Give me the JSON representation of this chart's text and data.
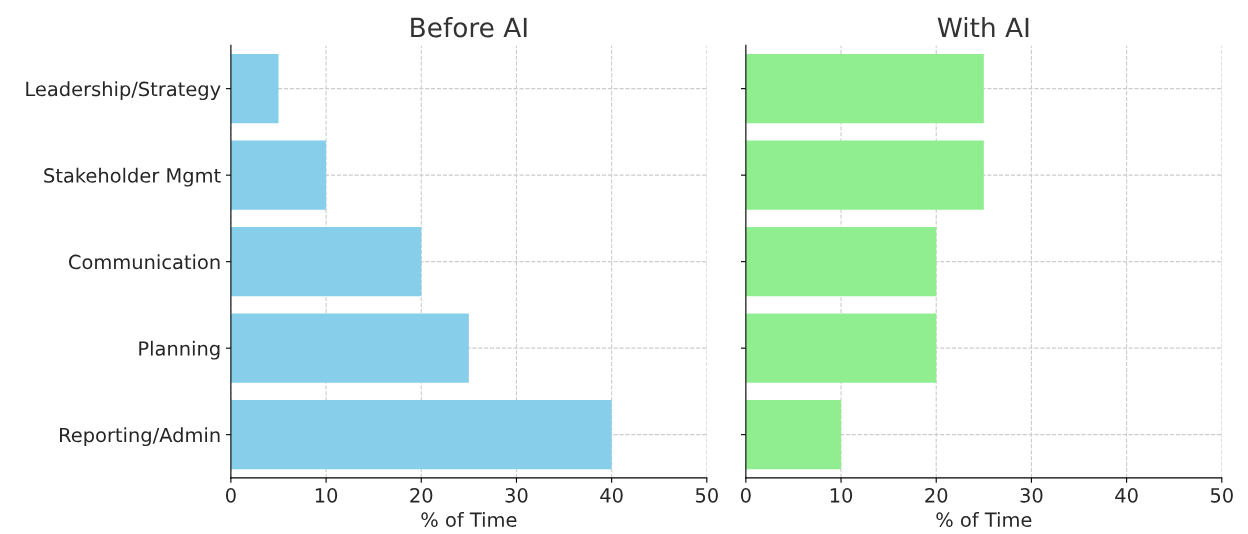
{
  "chart_data": [
    {
      "type": "bar",
      "orientation": "horizontal",
      "title": "Before AI",
      "xlabel": "% of Time",
      "categories": [
        "Leadership/Strategy",
        "Stakeholder Mgmt",
        "Communication",
        "Planning",
        "Reporting/Admin"
      ],
      "values": [
        5,
        10,
        20,
        25,
        40
      ],
      "color": "#87ceeb",
      "xlim": [
        0,
        50
      ],
      "xticks": [
        0,
        10,
        20,
        30,
        40,
        50
      ],
      "grid": true
    },
    {
      "type": "bar",
      "orientation": "horizontal",
      "title": "With AI",
      "xlabel": "% of Time",
      "categories": [
        null,
        null,
        null,
        null,
        null
      ],
      "values": [
        25,
        25,
        20,
        20,
        10
      ],
      "color": "#90ee90",
      "xlim": [
        0,
        50
      ],
      "xticks": [
        0,
        10,
        20,
        30,
        40,
        50
      ],
      "grid": true,
      "tick_labels": "x"
    }
  ]
}
